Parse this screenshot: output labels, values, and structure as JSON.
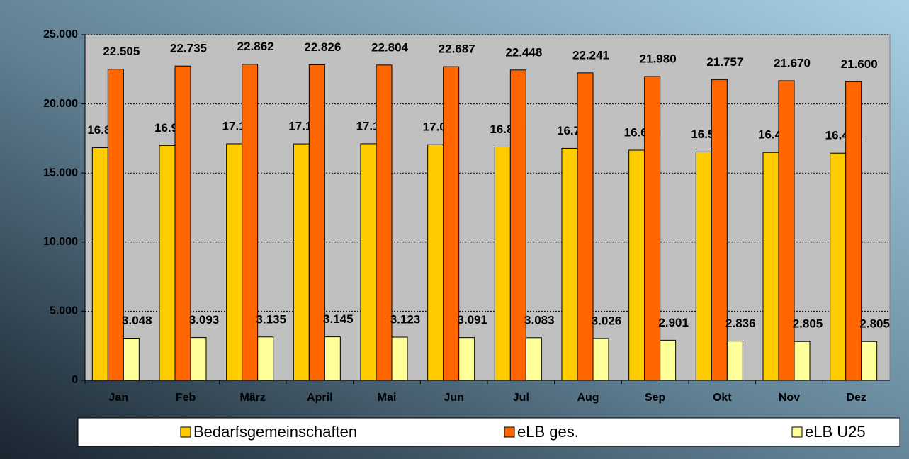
{
  "chart_data": {
    "type": "bar",
    "categories": [
      "Jan",
      "Feb",
      "März",
      "April",
      "Mai",
      "Jun",
      "Jul",
      "Aug",
      "Sep",
      "Okt",
      "Nov",
      "Dez"
    ],
    "series": [
      {
        "name": "Bedarfsgemeinschaften",
        "color": "#ffcc00",
        "values": [
          16826,
          16988,
          17111,
          17106,
          17115,
          17047,
          16879,
          16781,
          16648,
          16526,
          16483,
          16434
        ],
        "value_labels": [
          "16.826",
          "16.988",
          "17.111",
          "17.106",
          "17.115",
          "17.047",
          "16.879",
          "16.781",
          "16.648",
          "16.526",
          "16.483",
          "16.434"
        ]
      },
      {
        "name": "eLB ges.",
        "color": "#ff6600",
        "values": [
          22505,
          22735,
          22862,
          22826,
          22804,
          22687,
          22448,
          22241,
          21980,
          21757,
          21670,
          21600
        ],
        "value_labels": [
          "22.505",
          "22.735",
          "22.862",
          "22.826",
          "22.804",
          "22.687",
          "22.448",
          "22.241",
          "21.980",
          "21.757",
          "21.670",
          "21.600"
        ]
      },
      {
        "name": "eLB U25",
        "color": "#ffff99",
        "values": [
          3048,
          3093,
          3135,
          3145,
          3123,
          3091,
          3083,
          3026,
          2901,
          2836,
          2805,
          2805
        ],
        "value_labels": [
          "3.048",
          "3.093",
          "3.135",
          "3.145",
          "3.123",
          "3.091",
          "3.083",
          "3.026",
          "2.901",
          "2.836",
          "2.805",
          "2.805"
        ]
      }
    ],
    "ylim": [
      0,
      25000
    ],
    "yticks": [
      0,
      {
        "value": 5000,
        "label": "5.000"
      },
      {
        "value": 10000,
        "label": "10.000"
      },
      {
        "value": 15000,
        "label": "15.000"
      },
      {
        "value": 20000,
        "label": "20.000"
      },
      {
        "value": 25000,
        "label": "25.000"
      }
    ],
    "grid": true,
    "legend": "bottom"
  }
}
